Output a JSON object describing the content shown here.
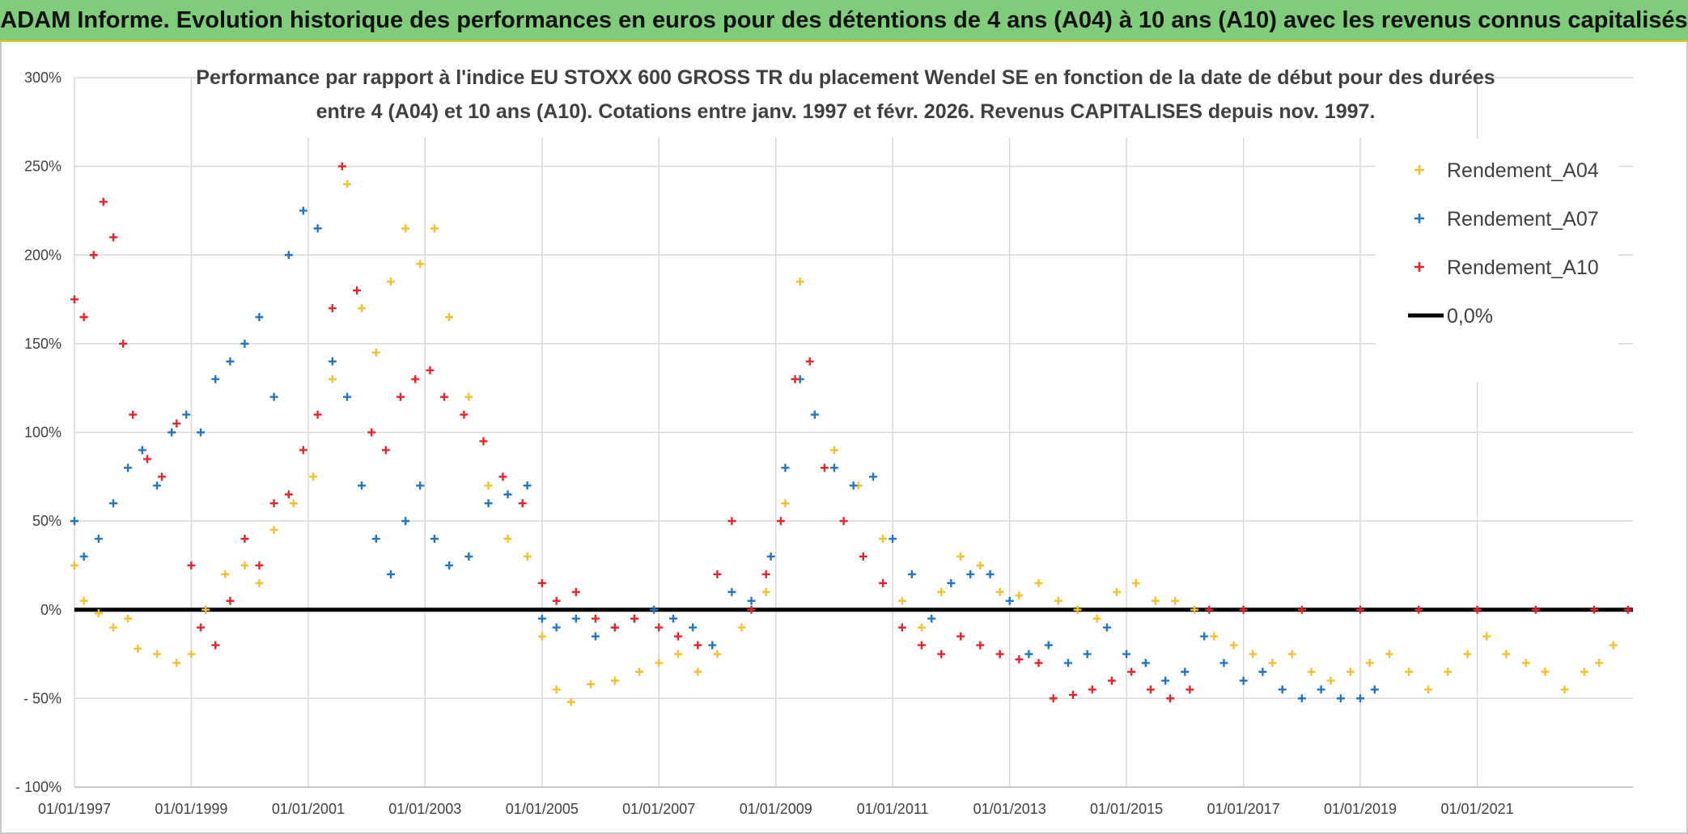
{
  "banner": {
    "title": "ADAM Informe. Evolution historique des performances en euros pour des détentions de 4 ans (A04) à 10 ans (A10) avec les revenus connus capitalisés"
  },
  "chart_data": {
    "type": "scatter",
    "title_lines": [
      "Performance par rapport à l'indice EU STOXX 600 GROSS TR  du placement Wendel SE en fonction de la date de début pour des durées",
      "entre 4 (A04) et 10 ans (A10). Cotations entre janv. 1997 et févr. 2026. Revenus CAPITALISES depuis nov. 1997."
    ],
    "xlabel": "",
    "ylabel": "",
    "x_range": [
      "1997-01-01",
      "2023-09-01"
    ],
    "y_range": [
      -100,
      300
    ],
    "y_ticks": [
      {
        "value": 300,
        "label": "300%"
      },
      {
        "value": 250,
        "label": "250%"
      },
      {
        "value": 200,
        "label": "200%"
      },
      {
        "value": 150,
        "label": "150%"
      },
      {
        "value": 100,
        "label": "100%"
      },
      {
        "value": 50,
        "label": "50%"
      },
      {
        "value": 0,
        "label": "0%"
      },
      {
        "value": -50,
        "label": "- 50%"
      },
      {
        "value": -100,
        "label": "- 100%"
      }
    ],
    "x_ticks": [
      {
        "value": "1997-01-01",
        "label": "01/01/1997"
      },
      {
        "value": "1999-01-01",
        "label": "01/01/1999"
      },
      {
        "value": "2001-01-01",
        "label": "01/01/2001"
      },
      {
        "value": "2003-01-01",
        "label": "01/01/2003"
      },
      {
        "value": "2005-01-01",
        "label": "01/01/2005"
      },
      {
        "value": "2007-01-01",
        "label": "01/01/2007"
      },
      {
        "value": "2009-01-01",
        "label": "01/01/2009"
      },
      {
        "value": "2011-01-01",
        "label": "01/01/2011"
      },
      {
        "value": "2013-01-01",
        "label": "01/01/2013"
      },
      {
        "value": "2015-01-01",
        "label": "01/01/2015"
      },
      {
        "value": "2017-01-01",
        "label": "01/01/2017"
      },
      {
        "value": "2019-01-01",
        "label": "01/01/2019"
      },
      {
        "value": "2021-01-01",
        "label": "01/01/2021"
      }
    ],
    "grid": true,
    "legend_position": "top-right",
    "series": [
      {
        "name": "Rendement_A04",
        "color": "#f5c02a",
        "marker": "plus",
        "points": [
          [
            "1997-01-01",
            25
          ],
          [
            "1997-03-01",
            5
          ],
          [
            "1997-06-01",
            -2
          ],
          [
            "1997-09-01",
            -10
          ],
          [
            "1997-12-01",
            -5
          ],
          [
            "1998-02-01",
            -22
          ],
          [
            "1998-06-01",
            -25
          ],
          [
            "1998-10-01",
            -30
          ],
          [
            "1999-01-01",
            -25
          ],
          [
            "1999-04-01",
            0
          ],
          [
            "1999-08-01",
            20
          ],
          [
            "1999-12-01",
            25
          ],
          [
            "2000-03-01",
            15
          ],
          [
            "2000-06-01",
            45
          ],
          [
            "2000-10-01",
            60
          ],
          [
            "2001-02-01",
            75
          ],
          [
            "2001-06-01",
            130
          ],
          [
            "2001-09-01",
            240
          ],
          [
            "2001-12-01",
            170
          ],
          [
            "2002-03-01",
            145
          ],
          [
            "2002-06-01",
            185
          ],
          [
            "2002-09-01",
            215
          ],
          [
            "2002-12-01",
            195
          ],
          [
            "2003-03-01",
            215
          ],
          [
            "2003-06-01",
            165
          ],
          [
            "2003-10-01",
            120
          ],
          [
            "2004-02-01",
            70
          ],
          [
            "2004-06-01",
            40
          ],
          [
            "2004-10-01",
            30
          ],
          [
            "2005-01-01",
            -15
          ],
          [
            "2005-04-01",
            -45
          ],
          [
            "2005-07-01",
            -52
          ],
          [
            "2005-11-01",
            -42
          ],
          [
            "2006-04-01",
            -40
          ],
          [
            "2006-09-01",
            -35
          ],
          [
            "2007-01-01",
            -30
          ],
          [
            "2007-05-01",
            -25
          ],
          [
            "2007-09-01",
            -35
          ],
          [
            "2008-01-01",
            -25
          ],
          [
            "2008-06-01",
            -10
          ],
          [
            "2008-11-01",
            10
          ],
          [
            "2009-03-01",
            60
          ],
          [
            "2009-06-01",
            185
          ],
          [
            "2009-09-01",
            110
          ],
          [
            "2010-01-01",
            90
          ],
          [
            "2010-06-01",
            70
          ],
          [
            "2010-11-01",
            40
          ],
          [
            "2011-03-01",
            5
          ],
          [
            "2011-07-01",
            -10
          ],
          [
            "2011-11-01",
            10
          ],
          [
            "2012-03-01",
            30
          ],
          [
            "2012-07-01",
            25
          ],
          [
            "2012-11-01",
            10
          ],
          [
            "2013-03-01",
            8
          ],
          [
            "2013-07-01",
            15
          ],
          [
            "2013-11-01",
            5
          ],
          [
            "2014-03-01",
            0
          ],
          [
            "2014-07-01",
            -5
          ],
          [
            "2014-11-01",
            10
          ],
          [
            "2015-03-01",
            15
          ],
          [
            "2015-07-01",
            5
          ],
          [
            "2015-11-01",
            5
          ],
          [
            "2016-03-01",
            0
          ],
          [
            "2016-07-01",
            -15
          ],
          [
            "2016-11-01",
            -20
          ],
          [
            "2017-03-01",
            -25
          ],
          [
            "2017-07-01",
            -30
          ],
          [
            "2017-11-01",
            -25
          ],
          [
            "2018-03-01",
            -35
          ],
          [
            "2018-07-01",
            -40
          ],
          [
            "2018-11-01",
            -35
          ],
          [
            "2019-03-01",
            -30
          ],
          [
            "2019-07-01",
            -25
          ],
          [
            "2019-11-01",
            -35
          ],
          [
            "2020-03-01",
            -45
          ],
          [
            "2020-07-01",
            -35
          ],
          [
            "2020-11-01",
            -25
          ],
          [
            "2021-03-01",
            -15
          ],
          [
            "2021-07-01",
            -25
          ],
          [
            "2021-11-01",
            -30
          ],
          [
            "2022-03-01",
            -35
          ],
          [
            "2022-07-01",
            -45
          ],
          [
            "2022-11-01",
            -35
          ],
          [
            "2023-02-01",
            -30
          ],
          [
            "2023-05-01",
            -20
          ]
        ]
      },
      {
        "name": "Rendement_A07",
        "color": "#1f77c4",
        "marker": "plus",
        "points": [
          [
            "1997-01-01",
            50
          ],
          [
            "1997-03-01",
            30
          ],
          [
            "1997-06-01",
            40
          ],
          [
            "1997-09-01",
            60
          ],
          [
            "1997-12-01",
            80
          ],
          [
            "1998-03-01",
            90
          ],
          [
            "1998-06-01",
            70
          ],
          [
            "1998-09-01",
            100
          ],
          [
            "1998-12-01",
            110
          ],
          [
            "1999-03-01",
            100
          ],
          [
            "1999-06-01",
            130
          ],
          [
            "1999-09-01",
            140
          ],
          [
            "1999-12-01",
            150
          ],
          [
            "2000-03-01",
            165
          ],
          [
            "2000-06-01",
            120
          ],
          [
            "2000-09-01",
            200
          ],
          [
            "2000-12-01",
            225
          ],
          [
            "2001-03-01",
            215
          ],
          [
            "2001-06-01",
            140
          ],
          [
            "2001-09-01",
            120
          ],
          [
            "2001-12-01",
            70
          ],
          [
            "2002-03-01",
            40
          ],
          [
            "2002-06-01",
            20
          ],
          [
            "2002-09-01",
            50
          ],
          [
            "2002-12-01",
            70
          ],
          [
            "2003-03-01",
            40
          ],
          [
            "2003-06-01",
            25
          ],
          [
            "2003-10-01",
            30
          ],
          [
            "2004-02-01",
            60
          ],
          [
            "2004-06-01",
            65
          ],
          [
            "2004-10-01",
            70
          ],
          [
            "2005-01-01",
            -5
          ],
          [
            "2005-04-01",
            -10
          ],
          [
            "2005-08-01",
            -5
          ],
          [
            "2005-12-01",
            -15
          ],
          [
            "2006-04-01",
            -10
          ],
          [
            "2006-08-01",
            -5
          ],
          [
            "2006-12-01",
            0
          ],
          [
            "2007-04-01",
            -5
          ],
          [
            "2007-08-01",
            -10
          ],
          [
            "2007-12-01",
            -20
          ],
          [
            "2008-04-01",
            10
          ],
          [
            "2008-08-01",
            5
          ],
          [
            "2008-12-01",
            30
          ],
          [
            "2009-03-01",
            80
          ],
          [
            "2009-06-01",
            130
          ],
          [
            "2009-09-01",
            110
          ],
          [
            "2010-01-01",
            80
          ],
          [
            "2010-05-01",
            70
          ],
          [
            "2010-09-01",
            75
          ],
          [
            "2011-01-01",
            40
          ],
          [
            "2011-05-01",
            20
          ],
          [
            "2011-09-01",
            -5
          ],
          [
            "2012-01-01",
            15
          ],
          [
            "2012-05-01",
            20
          ],
          [
            "2012-09-01",
            20
          ],
          [
            "2013-01-01",
            5
          ],
          [
            "2013-05-01",
            -25
          ],
          [
            "2013-09-01",
            -20
          ],
          [
            "2014-01-01",
            -30
          ],
          [
            "2014-05-01",
            -25
          ],
          [
            "2014-09-01",
            -10
          ],
          [
            "2015-01-01",
            -25
          ],
          [
            "2015-05-01",
            -30
          ],
          [
            "2015-09-01",
            -40
          ],
          [
            "2016-01-01",
            -35
          ],
          [
            "2016-05-01",
            -15
          ],
          [
            "2016-09-01",
            -30
          ],
          [
            "2017-01-01",
            -40
          ],
          [
            "2017-05-01",
            -35
          ],
          [
            "2017-09-01",
            -45
          ],
          [
            "2018-01-01",
            -50
          ],
          [
            "2018-05-01",
            -45
          ],
          [
            "2018-09-01",
            -50
          ],
          [
            "2019-01-01",
            -50
          ],
          [
            "2019-04-01",
            -45
          ]
        ]
      },
      {
        "name": "Rendement_A10",
        "color": "#e8232a",
        "marker": "plus",
        "points": [
          [
            "1997-01-01",
            175
          ],
          [
            "1997-03-01",
            165
          ],
          [
            "1997-05-01",
            200
          ],
          [
            "1997-07-01",
            230
          ],
          [
            "1997-09-01",
            210
          ],
          [
            "1997-11-01",
            150
          ],
          [
            "1998-01-01",
            110
          ],
          [
            "1998-04-01",
            85
          ],
          [
            "1998-07-01",
            75
          ],
          [
            "1998-10-01",
            105
          ],
          [
            "1999-01-01",
            25
          ],
          [
            "1999-03-01",
            -10
          ],
          [
            "1999-06-01",
            -20
          ],
          [
            "1999-09-01",
            5
          ],
          [
            "1999-12-01",
            40
          ],
          [
            "2000-03-01",
            25
          ],
          [
            "2000-06-01",
            60
          ],
          [
            "2000-09-01",
            65
          ],
          [
            "2000-12-01",
            90
          ],
          [
            "2001-03-01",
            110
          ],
          [
            "2001-06-01",
            170
          ],
          [
            "2001-08-01",
            250
          ],
          [
            "2001-11-01",
            180
          ],
          [
            "2002-02-01",
            100
          ],
          [
            "2002-05-01",
            90
          ],
          [
            "2002-08-01",
            120
          ],
          [
            "2002-11-01",
            130
          ],
          [
            "2003-02-01",
            135
          ],
          [
            "2003-05-01",
            120
          ],
          [
            "2003-09-01",
            110
          ],
          [
            "2004-01-01",
            95
          ],
          [
            "2004-05-01",
            75
          ],
          [
            "2004-09-01",
            60
          ],
          [
            "2005-01-01",
            15
          ],
          [
            "2005-04-01",
            5
          ],
          [
            "2005-08-01",
            10
          ],
          [
            "2005-12-01",
            -5
          ],
          [
            "2006-04-01",
            -10
          ],
          [
            "2006-08-01",
            -5
          ],
          [
            "2007-01-01",
            -10
          ],
          [
            "2007-05-01",
            -15
          ],
          [
            "2007-09-01",
            -20
          ],
          [
            "2008-01-01",
            20
          ],
          [
            "2008-04-01",
            50
          ],
          [
            "2008-08-01",
            0
          ],
          [
            "2008-11-01",
            20
          ],
          [
            "2009-02-01",
            50
          ],
          [
            "2009-05-01",
            130
          ],
          [
            "2009-08-01",
            140
          ],
          [
            "2009-11-01",
            80
          ],
          [
            "2010-03-01",
            50
          ],
          [
            "2010-07-01",
            30
          ],
          [
            "2010-11-01",
            15
          ],
          [
            "2011-03-01",
            -10
          ],
          [
            "2011-07-01",
            -20
          ],
          [
            "2011-11-01",
            -25
          ],
          [
            "2012-03-01",
            -15
          ],
          [
            "2012-07-01",
            -20
          ],
          [
            "2012-11-01",
            -25
          ],
          [
            "2013-03-01",
            -28
          ],
          [
            "2013-07-01",
            -30
          ],
          [
            "2013-10-01",
            -50
          ],
          [
            "2014-02-01",
            -48
          ],
          [
            "2014-06-01",
            -45
          ],
          [
            "2014-10-01",
            -40
          ],
          [
            "2015-02-01",
            -35
          ],
          [
            "2015-06-01",
            -45
          ],
          [
            "2015-10-01",
            -50
          ],
          [
            "2016-02-01",
            -45
          ],
          [
            "2016-06-01",
            0
          ],
          [
            "2017-01-01",
            0
          ],
          [
            "2018-01-01",
            0
          ],
          [
            "2019-01-01",
            0
          ],
          [
            "2020-01-01",
            0
          ],
          [
            "2021-01-01",
            0
          ],
          [
            "2022-01-01",
            0
          ],
          [
            "2023-01-01",
            0
          ],
          [
            "2023-08-01",
            0
          ]
        ]
      }
    ],
    "reference_line": {
      "name": "0,0%",
      "value": 0,
      "color": "#000000"
    }
  }
}
